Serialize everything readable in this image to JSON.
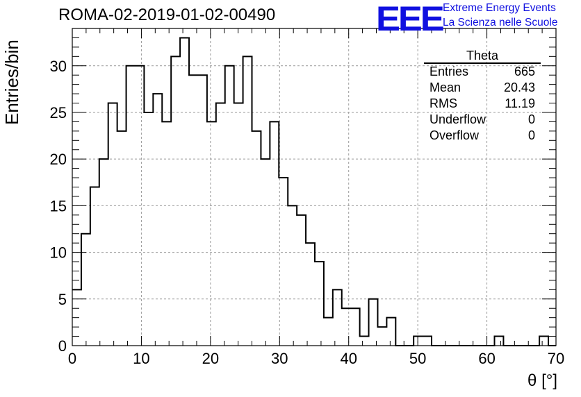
{
  "title": "ROMA-02-2019-01-02-00490",
  "logo": {
    "mark": "EEE",
    "line1": "Extreme Energy Events",
    "line2": "La Scienza nelle Scuole",
    "color": "#1010e0"
  },
  "stats": {
    "title": "Theta",
    "rows": [
      {
        "label": "Entries",
        "value": "665"
      },
      {
        "label": "Mean",
        "value": "20.43"
      },
      {
        "label": "RMS",
        "value": "11.19"
      },
      {
        "label": "Underflow",
        "value": "0"
      },
      {
        "label": "Overflow",
        "value": "0"
      }
    ]
  },
  "chart_data": {
    "type": "bar",
    "style": "step-histogram",
    "title": "ROMA-02-2019-01-02-00490",
    "xlabel": "θ [°]",
    "ylabel": "Entries/bin",
    "xlim": [
      0,
      70
    ],
    "ylim": [
      0,
      34
    ],
    "xticks": [
      0,
      10,
      20,
      30,
      40,
      50,
      60,
      70
    ],
    "yticks": [
      0,
      5,
      10,
      15,
      20,
      25,
      30
    ],
    "grid": true,
    "bin_width": 1.3,
    "bin_start": 0,
    "values": [
      6,
      12,
      17,
      20,
      26,
      23,
      30,
      30,
      25,
      27,
      24,
      31,
      33,
      29,
      29,
      24,
      26,
      30,
      26,
      31,
      23,
      20,
      24,
      18,
      15,
      14,
      11,
      9,
      3,
      6,
      4,
      4,
      1,
      5,
      2,
      3,
      0,
      0,
      1,
      1,
      0,
      0,
      0,
      0,
      0,
      0,
      0,
      1,
      0,
      0,
      0,
      0,
      1,
      0
    ],
    "line_color": "#000000"
  }
}
